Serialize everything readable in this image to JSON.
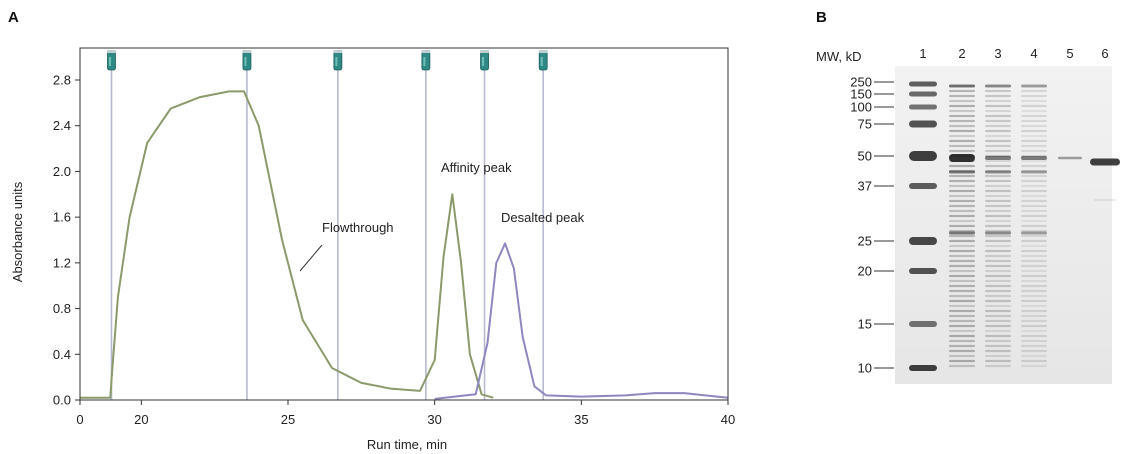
{
  "panel_a": {
    "label": "A",
    "ylabel": "Absorbance units",
    "xlabel": "Run time, min",
    "y_ticks": [
      "0.0",
      "0.4",
      "0.8",
      "1.2",
      "1.6",
      "2.0",
      "2.4",
      "2.8"
    ],
    "x_ticks": [
      "0",
      "20",
      "25",
      "30",
      "35",
      "40"
    ],
    "annotations": {
      "flowthrough": "Flowthrough",
      "affinity": "Affinity peak",
      "desalted": "Desalted peak"
    },
    "colors": {
      "affinity_trace": "#8a9a6a",
      "desalted_trace": "#8f87c0",
      "axis": "#333333",
      "marker": "#b7bad0",
      "tube": "#2f8a86"
    }
  },
  "panel_b": {
    "label": "B",
    "mw_header": "MW, kD",
    "lane_labels": [
      "1",
      "2",
      "3",
      "4",
      "5",
      "6"
    ],
    "mw_markers": [
      "250",
      "150",
      "100",
      "75",
      "50",
      "37",
      "25",
      "20",
      "15",
      "10"
    ]
  },
  "chart_data": {
    "type": "line",
    "xlabel": "Run time, min",
    "ylabel": "Absorbance units",
    "xlim": [
      0,
      40
    ],
    "ylim": [
      0,
      2.8
    ],
    "x_axis_break": [
      0,
      19
    ],
    "fraction_markers_x": [
      18.7,
      23.6,
      26.7,
      29.7,
      31.7,
      33.7
    ],
    "series": [
      {
        "name": "Affinity peak",
        "x": [
          0,
          18,
          18.8,
          19.2,
          19.6,
          20.2,
          21,
          22,
          23,
          23.5,
          24,
          24.8,
          25.5,
          26.5,
          27.5,
          28.5,
          29.5,
          30,
          30.3,
          30.6,
          30.9,
          31.2,
          31.6,
          32
        ],
        "y": [
          0.02,
          0.02,
          0.2,
          0.9,
          1.6,
          2.25,
          2.55,
          2.65,
          2.7,
          2.7,
          2.4,
          1.4,
          0.7,
          0.28,
          0.15,
          0.1,
          0.08,
          0.35,
          1.25,
          1.8,
          1.2,
          0.4,
          0.05,
          0.02
        ]
      },
      {
        "name": "Desalted peak",
        "x": [
          30,
          31.4,
          31.8,
          32.1,
          32.4,
          32.7,
          33,
          33.4,
          33.8,
          35,
          36.5,
          37.5,
          38.5,
          40
        ],
        "y": [
          0.01,
          0.05,
          0.5,
          1.2,
          1.37,
          1.15,
          0.55,
          0.12,
          0.04,
          0.03,
          0.04,
          0.06,
          0.06,
          0.02
        ]
      }
    ]
  }
}
